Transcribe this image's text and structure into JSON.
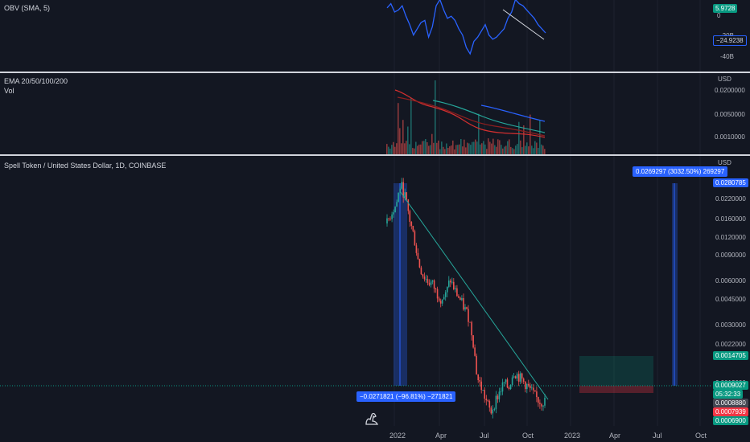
{
  "chart_data": [
    {
      "type": "line",
      "pane": "obv",
      "legend": "OBV (SMA, 5)",
      "y_tick_labels": [
        "0",
        "-20B",
        "-40B"
      ],
      "last_values": [
        "5.9728",
        "−24.9238"
      ],
      "series": [
        {
          "values": [
            14,
            18,
            10,
            12,
            16,
            6,
            -2,
            -12,
            -6,
            0,
            2,
            -14,
            -4,
            16,
            22,
            12,
            4,
            6,
            2,
            -6,
            -12,
            -24,
            -30,
            -18,
            -14,
            -8,
            -2,
            -12,
            -16,
            -14,
            -10,
            -6,
            4,
            10,
            22,
            18,
            16,
            12,
            8,
            4,
            -2,
            -6,
            -10
          ]
        }
      ]
    },
    {
      "type": "bar",
      "pane": "ema_volume",
      "legend": [
        "EMA 20/50/100/200",
        "Vol"
      ],
      "unit": "USD",
      "y_tick_labels": [
        "0.0200000",
        "0.0050000",
        "0.0010000"
      ],
      "ema_colors": [
        "#d32f2f",
        "#8e1f1f",
        "#26a69a",
        "#2962ff"
      ]
    },
    {
      "type": "line",
      "pane": "price",
      "title": "Spell Token / United States Dollar, 1D, COINBASE",
      "unit": "USD",
      "scale": "log",
      "x_tick_labels": [
        "2022",
        "Apr",
        "Jul",
        "Oct",
        "2023",
        "Apr",
        "Jul",
        "Oct"
      ],
      "y_tick_labels": [
        "0.0220000",
        "0.0160000",
        "0.0120000",
        "0.0090000",
        "0.0060000",
        "0.0045000",
        "0.0030000",
        "0.0022000",
        "0.0012000"
      ],
      "series": [
        {
          "values": [
            0.015,
            0.018,
            0.02,
            0.028,
            0.023,
            0.016,
            0.012,
            0.008,
            0.0066,
            0.006,
            0.0058,
            0.005,
            0.0046,
            0.0048,
            0.0062,
            0.0052,
            0.0046,
            0.004,
            0.0035,
            0.0025,
            0.0013,
            0.0011,
            0.0009,
            0.00075,
            0.0009,
            0.00105,
            0.0012,
            0.0011,
            0.00145,
            0.00135,
            0.00125,
            0.00115,
            0.00105,
            0.00095,
            0.00089,
            0.0009
          ]
        }
      ],
      "annotations": {
        "measure_down": "−0.0271821 (−96.81%) −271821",
        "measure_up": "0.0269297 (3032.50%) 269297"
      },
      "price_tags": {
        "top": "0.0280785",
        "target": "0.0014705",
        "last": "0.0009027",
        "countdown": "05:32:33",
        "entry": "0.0008880",
        "stop": "0.0007939",
        "low": "0.0006900"
      }
    }
  ]
}
